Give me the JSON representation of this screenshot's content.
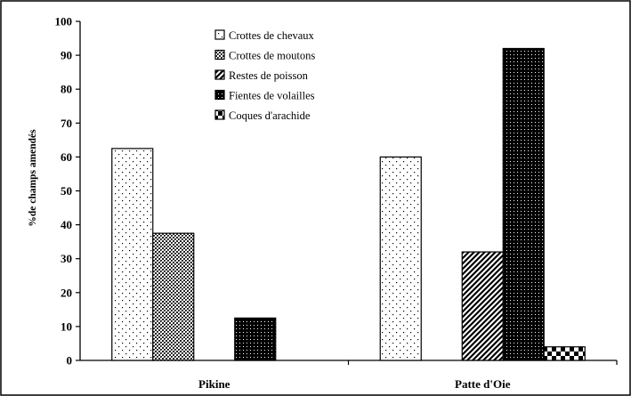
{
  "chart_data": {
    "type": "bar",
    "title": "",
    "xlabel": "",
    "ylabel": "%de champs amendés",
    "ylim": [
      0,
      100
    ],
    "yticks": [
      0,
      10,
      20,
      30,
      40,
      50,
      60,
      70,
      80,
      90,
      100
    ],
    "categories": [
      "Pikine",
      "Patte d'Oie"
    ],
    "series": [
      {
        "name": "Crottes de chevaux",
        "pattern": "dots",
        "values": [
          62.5,
          60
        ]
      },
      {
        "name": "Crottes de moutons",
        "pattern": "crosshatch",
        "values": [
          37.5,
          0
        ]
      },
      {
        "name": "Restes de poisson",
        "pattern": "diagonal",
        "values": [
          0,
          32
        ]
      },
      {
        "name": "Fientes de volailles",
        "pattern": "dense-dots",
        "values": [
          12.5,
          92
        ]
      },
      {
        "name": "Coques d'arachide",
        "pattern": "checker",
        "values": [
          0,
          4
        ]
      }
    ],
    "legend_position": "top-center",
    "grid": false
  }
}
